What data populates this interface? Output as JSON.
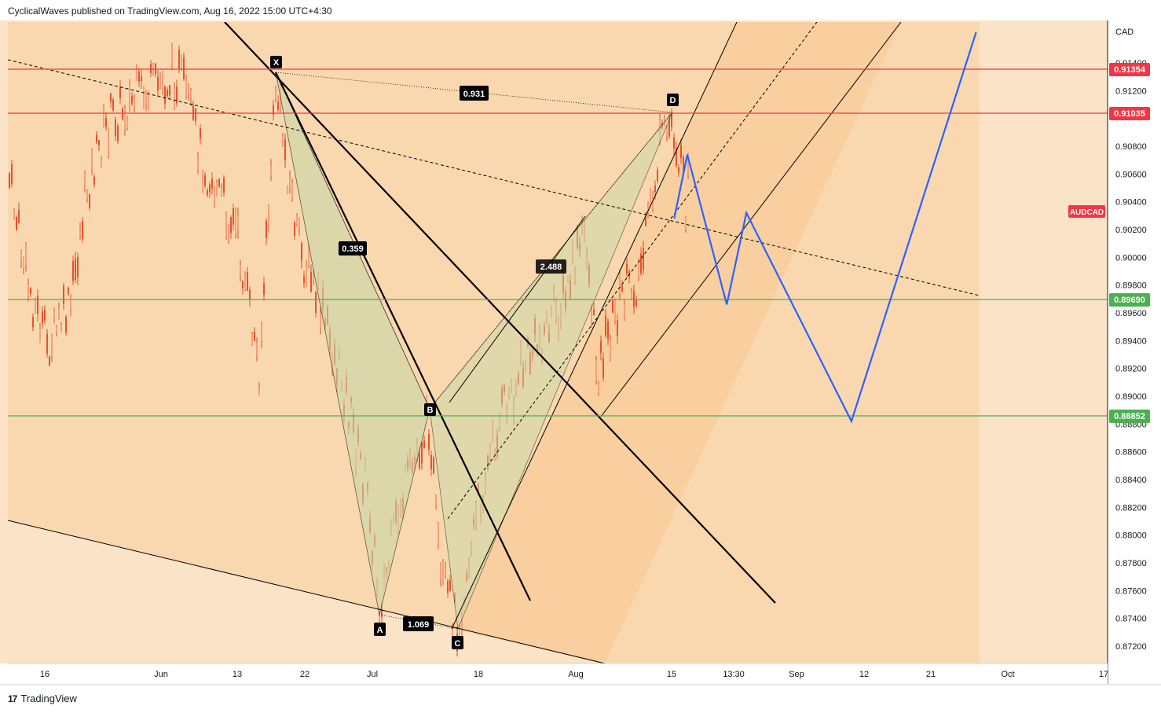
{
  "header": {
    "publisher_text": "CyclicalWaves published on TradingView.com, Aug 16, 2022 15:00 UTC+4:30"
  },
  "footer": {
    "brand": "TradingView",
    "logo_icon": "tradingview-logo-icon"
  },
  "colors": {
    "bg": "#fbe3c8",
    "zone": "#fad8af",
    "channel": "#f8c992",
    "pattern_fill": "#c8d7a8",
    "bear_candle": "#e8502c",
    "resistance": "#f23645",
    "support": "#4caf50",
    "projection": "#2962ff",
    "trendline": "#000000"
  },
  "chart_data": {
    "type": "line",
    "symbol": "AUDCAD",
    "currency": "CAD",
    "y_axis": {
      "ylim": [
        0.871,
        0.9162
      ],
      "tick_labels": [
        "0.91400",
        "0.91200",
        "0.90800",
        "0.90600",
        "0.90400",
        "0.90200",
        "0.90000",
        "0.89800",
        "0.89600",
        "0.89400",
        "0.89200",
        "0.89000",
        "0.88800",
        "0.88600",
        "0.88400",
        "0.88200",
        "0.88000",
        "0.87800",
        "0.87600",
        "0.87400",
        "0.87200"
      ]
    },
    "x_axis": {
      "tick_labels": [
        "16",
        "Jun",
        "13",
        "22",
        "Jul",
        "18",
        "Aug",
        "15",
        "13:30",
        "Sep",
        "12",
        "21",
        "Oct",
        "17"
      ]
    },
    "price_levels": [
      {
        "label": "0.91354",
        "value": 0.91354,
        "role": "resistance"
      },
      {
        "label": "0.91035",
        "value": 0.91035,
        "role": "resistance"
      },
      {
        "label": "0.89690",
        "value": 0.8969,
        "role": "support"
      },
      {
        "label": "0.88852",
        "value": 0.88852,
        "role": "support"
      }
    ],
    "harmonic_pattern": {
      "points": [
        {
          "name": "X",
          "date": "2022-06-16",
          "price": 0.9133
        },
        {
          "name": "A",
          "date": "2022-07-01",
          "price": 0.8741
        },
        {
          "name": "B",
          "date": "2022-07-08",
          "price": 0.8881
        },
        {
          "name": "C",
          "date": "2022-07-14",
          "price": 0.8731
        },
        {
          "name": "D",
          "date": "2022-08-15",
          "price": 0.9104
        }
      ],
      "ratios": [
        {
          "value": "0.359",
          "between": "XA-B"
        },
        {
          "value": "1.069",
          "between": "AB-C"
        },
        {
          "value": "2.488",
          "between": "BC-D"
        },
        {
          "value": "0.931",
          "between": "XA-D"
        }
      ]
    },
    "projection_path": [
      {
        "date": "2022-08-16",
        "price": 0.9028
      },
      {
        "date": "2022-08-18",
        "price": 0.9074
      },
      {
        "date": "2022-08-24",
        "price": 0.8966
      },
      {
        "date": "2022-08-27",
        "price": 0.9032
      },
      {
        "date": "2022-09-12",
        "price": 0.8882
      },
      {
        "date": "2022-10-01",
        "price": 0.9162
      }
    ],
    "tag_label": "AUDCAD"
  }
}
